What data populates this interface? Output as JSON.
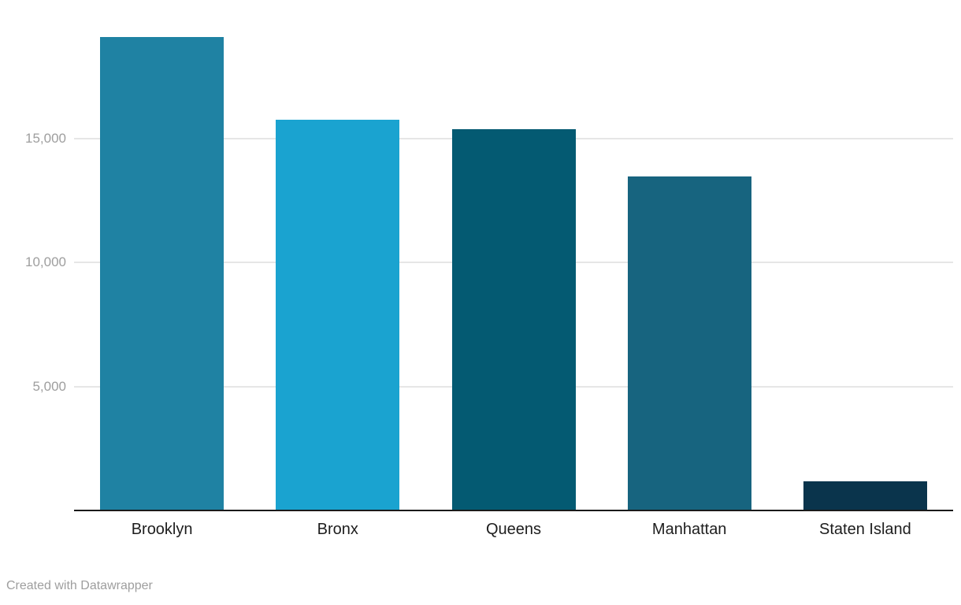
{
  "chart_data": {
    "type": "bar",
    "categories": [
      "Brooklyn",
      "Bronx",
      "Queens",
      "Manhattan",
      "Staten Island"
    ],
    "values": [
      19100,
      15780,
      15400,
      13470,
      1170
    ],
    "bar_colors": [
      "#1f82a3",
      "#1aa3d0",
      "#045a72",
      "#17647f",
      "#0a344c"
    ],
    "title": "",
    "xlabel": "",
    "ylabel": "",
    "ylim": [
      0,
      20600
    ],
    "yticks": [
      {
        "value": 5000,
        "label": "5,000"
      },
      {
        "value": 10000,
        "label": "10,000"
      },
      {
        "value": 15000,
        "label": "15,000"
      }
    ],
    "grid": "horizontal",
    "legend": "none"
  },
  "footer": {
    "attribution": "Created with Datawrapper"
  },
  "colors": {
    "background": "#ffffff",
    "grid": "#e6e6e6",
    "axis_line": "#1a1a1a",
    "tick_label": "#9e9e9e",
    "category_label": "#1d1d1d",
    "attribution": "#9e9e9e"
  }
}
